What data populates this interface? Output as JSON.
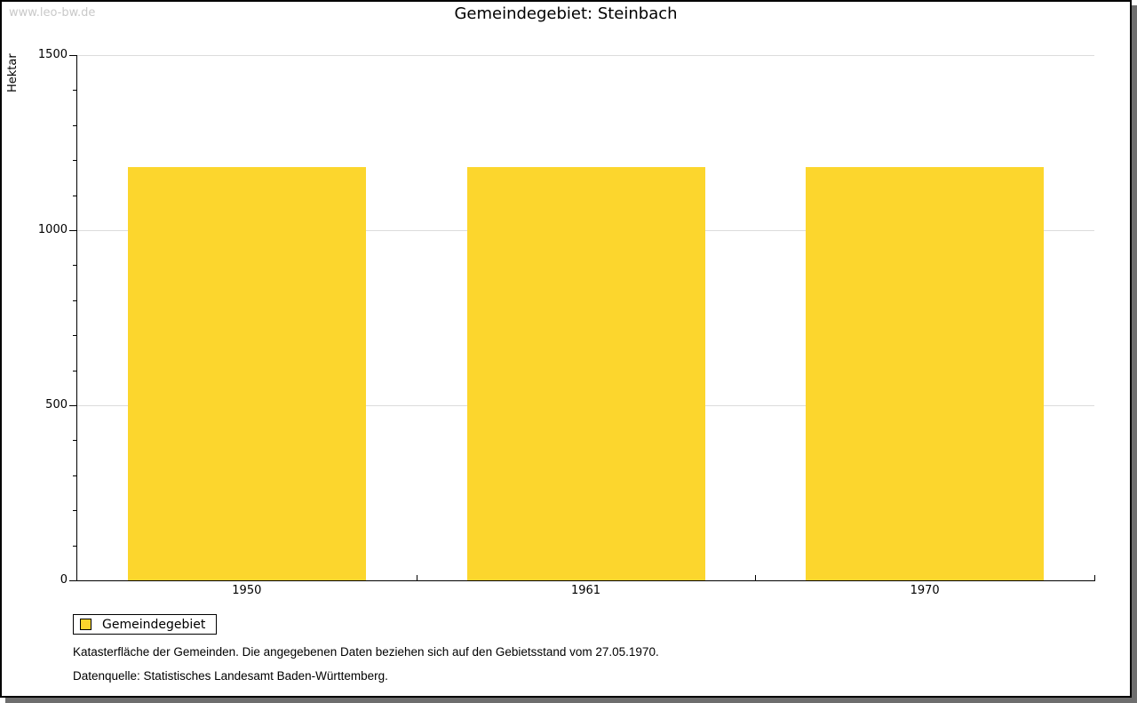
{
  "watermark": "www.leo-bw.de",
  "title": "Gemeindegebiet: Steinbach",
  "legend": {
    "label": "Gemeindegebiet"
  },
  "footnotes": {
    "line1": "Katasterfläche der Gemeinden. Die angegebenen Daten beziehen sich auf den Gebietsstand vom 27.05.1970.",
    "line2": "Datenquelle: Statistisches Landesamt Baden-Württemberg."
  },
  "colors": {
    "bar": "#fcd62d",
    "gridline": "#dcdcdc",
    "watermark": "#c9c9c9",
    "frame_shadow": "#6e6e6e",
    "axis": "#000000"
  },
  "chart_data": {
    "type": "bar",
    "categories": [
      "1950",
      "1961",
      "1970"
    ],
    "series": [
      {
        "name": "Gemeindegebiet",
        "values": [
          1181,
          1181,
          1181
        ]
      }
    ],
    "title": "Gemeindegebiet: Steinbach",
    "xlabel": "",
    "ylabel": "Hektar",
    "ylim": [
      0,
      1500
    ],
    "yticks_major": [
      0,
      500,
      1000,
      1500
    ],
    "ytick_minor_step": 100,
    "grid": "horizontal-major",
    "legend_position": "bottom-left",
    "bar_color": "#fcd62d"
  }
}
